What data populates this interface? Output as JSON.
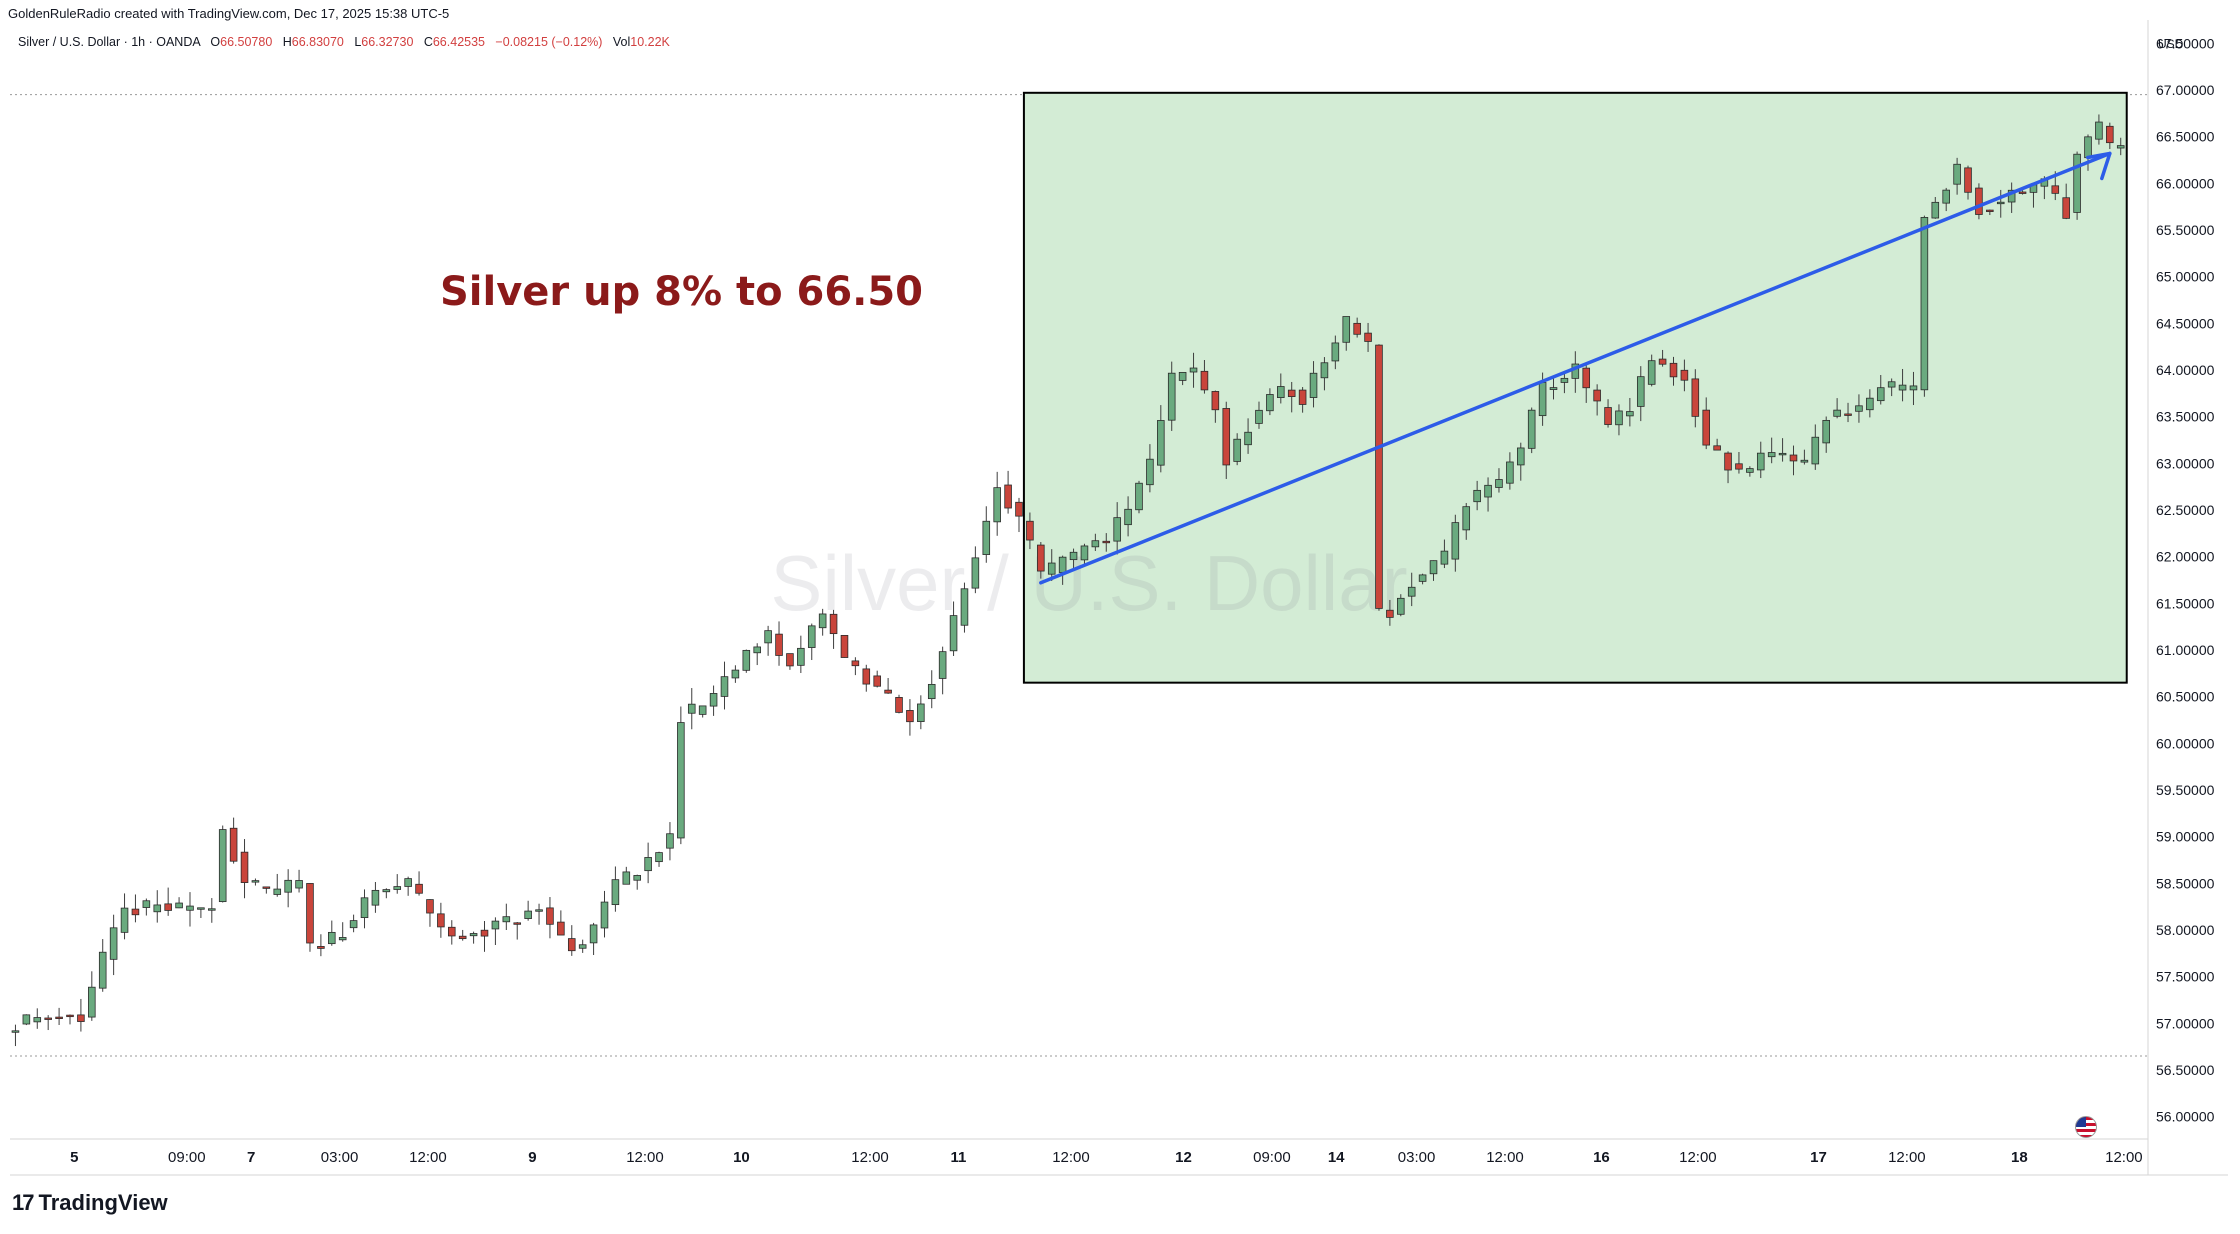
{
  "header": {
    "credit": "GoldenRuleRadio created with TradingView.com, Dec 17, 2025 15:38 UTC-5",
    "symbol": "Silver / U.S. Dollar · 1h · OANDA",
    "open_label": "O",
    "open": "66.50780",
    "high_label": "H",
    "high": "66.83070",
    "low_label": "L",
    "low": "66.32730",
    "close_label": "C",
    "close": "66.42535",
    "change": "−0.08215 (−0.12%)",
    "volume_label": "Vol",
    "volume": "10.22K"
  },
  "currency": "USD",
  "watermark": "Silver / U.S. Dollar",
  "annotation": "Silver up 8% to 66.50",
  "brand": "TradingView",
  "brand_icon": "tradingview-logo-icon",
  "colors": {
    "up": "#26a69a",
    "up_fill": "#6aaa7f",
    "down": "#c9453b",
    "box_fill": "#d3ecd5",
    "trend": "#2d5ce8",
    "annotation": "#8b1a1a"
  },
  "chart_data": {
    "type": "candlestick",
    "ylim": [
      55.75,
      67.75
    ],
    "y_ticks": [
      "56.00000",
      "56.50000",
      "57.00000",
      "57.50000",
      "58.00000",
      "58.50000",
      "59.00000",
      "59.50000",
      "60.00000",
      "60.50000",
      "61.00000",
      "61.50000",
      "62.00000",
      "62.50000",
      "63.00000",
      "63.50000",
      "64.00000",
      "64.50000",
      "65.00000",
      "65.50000",
      "66.00000",
      "66.50000",
      "67.00000",
      "67.50000"
    ],
    "x_ticks": [
      "5",
      "09:00",
      "7",
      "03:00",
      "12:00",
      "9",
      "12:00",
      "10",
      "12:00",
      "11",
      "12:00",
      "12",
      "09:00",
      "14",
      "03:00",
      "12:00",
      "16",
      "12:00",
      "17",
      "12:00",
      "18",
      "12:00"
    ],
    "dotted_levels": [
      66.95,
      56.65
    ],
    "box": {
      "start_index": 93,
      "end_index": 193,
      "top": 66.97,
      "bottom": 60.65
    },
    "trendline": {
      "start_index": 94,
      "start_value": 61.72,
      "end_index": 192,
      "end_value": 66.32
    },
    "close_path": [
      [
        0,
        57.0
      ],
      [
        3,
        57.1
      ],
      [
        6,
        57.05
      ],
      [
        8,
        57.7
      ],
      [
        10,
        58.2
      ],
      [
        13,
        58.25
      ],
      [
        16,
        58.2
      ],
      [
        18,
        58.3
      ],
      [
        19,
        59.1
      ],
      [
        21,
        58.5
      ],
      [
        23,
        58.4
      ],
      [
        26,
        58.5
      ],
      [
        27,
        57.8
      ],
      [
        30,
        58.0
      ],
      [
        33,
        58.4
      ],
      [
        36,
        58.5
      ],
      [
        38,
        58.2
      ],
      [
        40,
        57.9
      ],
      [
        44,
        58.05
      ],
      [
        48,
        58.2
      ],
      [
        51,
        57.8
      ],
      [
        53,
        58.0
      ],
      [
        55,
        58.5
      ],
      [
        58,
        58.7
      ],
      [
        60,
        59.0
      ],
      [
        61,
        60.3
      ],
      [
        63,
        60.4
      ],
      [
        66,
        60.8
      ],
      [
        69,
        61.2
      ],
      [
        71,
        60.8
      ],
      [
        74,
        61.4
      ],
      [
        76,
        60.9
      ],
      [
        79,
        60.6
      ],
      [
        82,
        60.2
      ],
      [
        84,
        60.7
      ],
      [
        86,
        61.3
      ],
      [
        88,
        62.0
      ],
      [
        90,
        62.8
      ],
      [
        92,
        62.4
      ],
      [
        94,
        61.8
      ],
      [
        97,
        62.0
      ],
      [
        100,
        62.2
      ],
      [
        102,
        62.5
      ],
      [
        104,
        63.0
      ],
      [
        106,
        63.9
      ],
      [
        108,
        64.0
      ],
      [
        110,
        63.6
      ],
      [
        111,
        63.0
      ],
      [
        113,
        63.4
      ],
      [
        116,
        63.8
      ],
      [
        118,
        63.7
      ],
      [
        120,
        64.1
      ],
      [
        122,
        64.5
      ],
      [
        124,
        64.3
      ],
      [
        125,
        61.4
      ],
      [
        126,
        61.4
      ],
      [
        128,
        61.7
      ],
      [
        131,
        62.0
      ],
      [
        133,
        62.6
      ],
      [
        136,
        62.8
      ],
      [
        138,
        63.2
      ],
      [
        140,
        63.8
      ],
      [
        143,
        64.0
      ],
      [
        146,
        63.4
      ],
      [
        148,
        63.6
      ],
      [
        150,
        64.1
      ],
      [
        153,
        63.9
      ],
      [
        155,
        63.2
      ],
      [
        158,
        62.9
      ],
      [
        161,
        63.1
      ],
      [
        164,
        63.0
      ],
      [
        166,
        63.5
      ],
      [
        169,
        63.6
      ],
      [
        171,
        63.8
      ],
      [
        174,
        63.8
      ],
      [
        175,
        65.6
      ],
      [
        178,
        66.2
      ],
      [
        180,
        65.7
      ],
      [
        183,
        65.9
      ],
      [
        186,
        66.0
      ],
      [
        188,
        65.7
      ],
      [
        189,
        66.3
      ],
      [
        191,
        66.6
      ],
      [
        192,
        66.4
      ],
      [
        193,
        66.43
      ]
    ]
  }
}
